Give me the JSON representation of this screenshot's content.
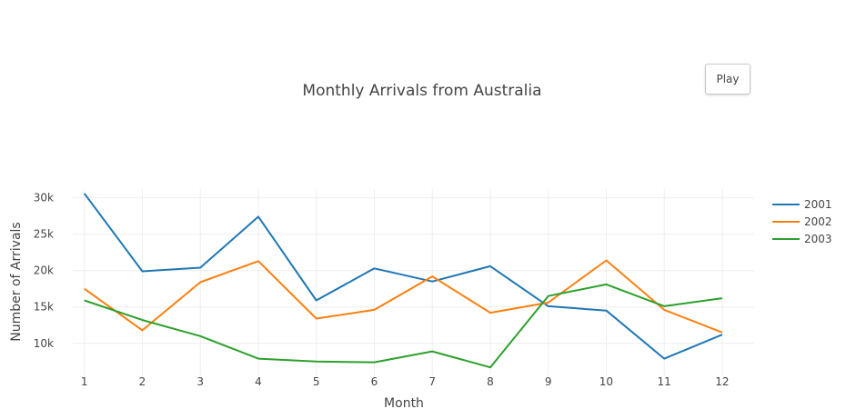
{
  "controls": {
    "play_label": "Play"
  },
  "chart_data": {
    "type": "line",
    "title": "Monthly Arrivals from Australia",
    "xlabel": "Month",
    "ylabel": "Number of Arrivals",
    "x": [
      1,
      2,
      3,
      4,
      5,
      6,
      7,
      8,
      9,
      10,
      11,
      12
    ],
    "x_tick_labels": [
      "1",
      "2",
      "3",
      "4",
      "5",
      "6",
      "7",
      "8",
      "9",
      "10",
      "11",
      "12"
    ],
    "y_ticks": [
      10000,
      15000,
      20000,
      25000,
      30000
    ],
    "y_tick_labels": [
      "10k",
      "15k",
      "20k",
      "25k",
      "30k"
    ],
    "xlim": [
      0.8,
      12.55
    ],
    "ylim": [
      5600,
      31200
    ],
    "grid": true,
    "legend_position": "top-right",
    "series": [
      {
        "name": "2001",
        "color": "#1f77b4",
        "values": [
          30600,
          19900,
          20400,
          27400,
          15900,
          20300,
          18500,
          20600,
          15100,
          14500,
          7900,
          11200
        ]
      },
      {
        "name": "2002",
        "color": "#ff7f0e",
        "values": [
          17500,
          11800,
          18400,
          21300,
          13400,
          14600,
          19200,
          14200,
          15600,
          21400,
          14600,
          11500
        ]
      },
      {
        "name": "2003",
        "color": "#2ca02c",
        "values": [
          15900,
          13200,
          11000,
          7900,
          7500,
          7400,
          8900,
          6700,
          16500,
          18100,
          15100,
          16200
        ]
      }
    ]
  }
}
